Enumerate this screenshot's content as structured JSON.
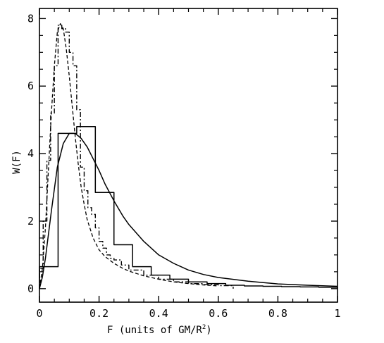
{
  "chart_data": {
    "type": "line",
    "title": "",
    "xlabel_main": "F (units of GM/R",
    "xlabel_sup": "2",
    "xlabel_tail": ")",
    "ylabel": "W(F)",
    "xlim": [
      0,
      1
    ],
    "ylim": [
      -0.4,
      8.3
    ],
    "grid": false,
    "x_ticks": [
      0,
      0.2,
      0.4,
      0.6,
      0.8,
      1
    ],
    "x_tick_labels": [
      "0",
      "0.2",
      "0.4",
      "0.6",
      "0.8",
      "1"
    ],
    "y_ticks": [
      0,
      2,
      4,
      6,
      8
    ],
    "y_tick_labels": [
      "0",
      "2",
      "4",
      "6",
      "8"
    ],
    "series": [
      {
        "style": "histogram",
        "bin_edges": [
          0,
          0.0625,
          0.125,
          0.1875,
          0.25,
          0.3125,
          0.375,
          0.4375,
          0.5,
          0.5625,
          0.625,
          0.6875,
          0.75,
          0.8125,
          0.875,
          0.9375,
          1.0
        ],
        "values": [
          0.65,
          4.6,
          4.8,
          2.85,
          1.3,
          0.65,
          0.4,
          0.28,
          0.2,
          0.15,
          0.1,
          0.08,
          0.07,
          0.06,
          0.05,
          0.04
        ]
      },
      {
        "style": "solid",
        "x": [
          0,
          0.01,
          0.02,
          0.04,
          0.06,
          0.08,
          0.1,
          0.12,
          0.14,
          0.16,
          0.18,
          0.2,
          0.22,
          0.25,
          0.28,
          0.3,
          0.35,
          0.4,
          0.45,
          0.5,
          0.55,
          0.6,
          0.7,
          0.8,
          0.9,
          1.0
        ],
        "y": [
          0.0,
          0.35,
          0.9,
          2.3,
          3.6,
          4.3,
          4.6,
          4.6,
          4.45,
          4.2,
          3.85,
          3.5,
          3.1,
          2.6,
          2.15,
          1.9,
          1.4,
          1.0,
          0.75,
          0.55,
          0.42,
          0.33,
          0.22,
          0.14,
          0.1,
          0.07
        ]
      },
      {
        "style": "dash-dot",
        "bin_edges": [
          0,
          0.0125,
          0.025,
          0.0375,
          0.05,
          0.0625,
          0.075,
          0.0875,
          0.1,
          0.1125,
          0.125,
          0.1375,
          0.15,
          0.1625,
          0.175,
          0.1875,
          0.2,
          0.2125,
          0.225,
          0.2375,
          0.25,
          0.275,
          0.3,
          0.35,
          0.4,
          0.45,
          0.5,
          0.55,
          0.6,
          0.65
        ],
        "values": [
          0.6,
          2.0,
          3.8,
          5.2,
          6.6,
          7.8,
          7.7,
          7.6,
          7.0,
          6.6,
          5.3,
          3.6,
          2.9,
          2.4,
          2.2,
          1.8,
          1.4,
          1.2,
          1.0,
          0.9,
          0.85,
          0.7,
          0.55,
          0.4,
          0.28,
          0.2,
          0.15,
          0.12,
          0.09
        ]
      },
      {
        "style": "dashed",
        "x": [
          0,
          0.01,
          0.02,
          0.03,
          0.04,
          0.05,
          0.06,
          0.07,
          0.08,
          0.09,
          0.1,
          0.11,
          0.12,
          0.13,
          0.14,
          0.15,
          0.16,
          0.18,
          0.2,
          0.22,
          0.25,
          0.28,
          0.3,
          0.35,
          0.4,
          0.45,
          0.5,
          0.55,
          0.6
        ],
        "y": [
          0.0,
          0.6,
          1.8,
          3.5,
          5.2,
          6.6,
          7.6,
          7.85,
          7.7,
          7.1,
          6.3,
          5.4,
          4.5,
          3.7,
          3.0,
          2.5,
          2.05,
          1.5,
          1.15,
          0.95,
          0.75,
          0.6,
          0.52,
          0.38,
          0.28,
          0.2,
          0.15,
          0.11,
          0.08
        ]
      }
    ]
  }
}
